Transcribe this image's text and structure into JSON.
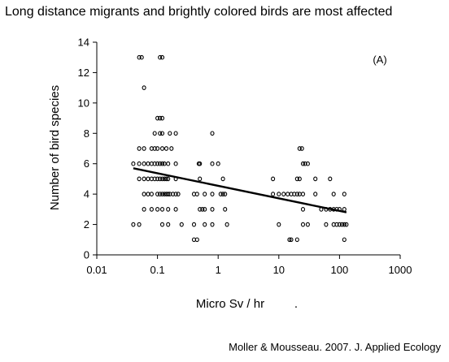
{
  "slide": {
    "title": "Long distance migrants and brightly colored birds are most affected",
    "citation": "Moller & Mousseau. 2007. J. Applied Ecology"
  },
  "chart_data": {
    "type": "scatter",
    "title": "",
    "panel_label": "(A)",
    "xlabel": "Micro Sv / hr",
    "xlabel_suffix": ".",
    "ylabel": "Number of bird species",
    "x_scale": "log",
    "xlim": [
      0.01,
      1000
    ],
    "ylim": [
      0,
      14
    ],
    "x_ticks": [
      0.01,
      0.1,
      1,
      10,
      100,
      1000
    ],
    "x_tick_labels": [
      "0.01",
      "0.1",
      "1",
      "10",
      "100",
      "1000"
    ],
    "y_ticks": [
      0,
      2,
      4,
      6,
      8,
      10,
      12,
      14
    ],
    "y_tick_labels": [
      "0",
      "2",
      "4",
      "6",
      "8",
      "10",
      "12",
      "14"
    ],
    "grid": false,
    "legend": "none",
    "colors": {
      "points": "#000000",
      "trend": "#000000"
    },
    "series": [
      {
        "values": [
          [
            0.05,
            13
          ],
          [
            0.055,
            13
          ],
          [
            0.11,
            13
          ],
          [
            0.12,
            13
          ],
          [
            0.06,
            11
          ],
          [
            0.1,
            9
          ],
          [
            0.11,
            9
          ],
          [
            0.12,
            9
          ],
          [
            0.09,
            8
          ],
          [
            0.11,
            8
          ],
          [
            0.12,
            8
          ],
          [
            0.16,
            8
          ],
          [
            0.2,
            8
          ],
          [
            0.8,
            8
          ],
          [
            0.05,
            7
          ],
          [
            0.06,
            7
          ],
          [
            0.08,
            7
          ],
          [
            0.09,
            7
          ],
          [
            0.1,
            7
          ],
          [
            0.12,
            7
          ],
          [
            0.14,
            7
          ],
          [
            0.17,
            7
          ],
          [
            22,
            7
          ],
          [
            24,
            7
          ],
          [
            0.04,
            6
          ],
          [
            0.05,
            6
          ],
          [
            0.06,
            6
          ],
          [
            0.07,
            6
          ],
          [
            0.08,
            6
          ],
          [
            0.09,
            6
          ],
          [
            0.1,
            6
          ],
          [
            0.11,
            6
          ],
          [
            0.12,
            6
          ],
          [
            0.13,
            6
          ],
          [
            0.15,
            6
          ],
          [
            0.2,
            6
          ],
          [
            0.48,
            6
          ],
          [
            0.5,
            6
          ],
          [
            0.8,
            6
          ],
          [
            1.0,
            6
          ],
          [
            25,
            6
          ],
          [
            27,
            6
          ],
          [
            30,
            6
          ],
          [
            0.05,
            5
          ],
          [
            0.06,
            5
          ],
          [
            0.07,
            5
          ],
          [
            0.08,
            5
          ],
          [
            0.09,
            5
          ],
          [
            0.1,
            5
          ],
          [
            0.11,
            5
          ],
          [
            0.12,
            5
          ],
          [
            0.13,
            5
          ],
          [
            0.14,
            5
          ],
          [
            0.15,
            5
          ],
          [
            0.2,
            5
          ],
          [
            0.5,
            5
          ],
          [
            1.2,
            5
          ],
          [
            8,
            5
          ],
          [
            20,
            5
          ],
          [
            22,
            5
          ],
          [
            40,
            5
          ],
          [
            70,
            5
          ],
          [
            0.06,
            4
          ],
          [
            0.07,
            4
          ],
          [
            0.08,
            4
          ],
          [
            0.1,
            4
          ],
          [
            0.11,
            4
          ],
          [
            0.12,
            4
          ],
          [
            0.13,
            4
          ],
          [
            0.14,
            4
          ],
          [
            0.15,
            4
          ],
          [
            0.16,
            4
          ],
          [
            0.18,
            4
          ],
          [
            0.2,
            4
          ],
          [
            0.22,
            4
          ],
          [
            0.4,
            4
          ],
          [
            0.45,
            4
          ],
          [
            0.6,
            4
          ],
          [
            0.8,
            4
          ],
          [
            1.1,
            4
          ],
          [
            1.2,
            4
          ],
          [
            1.3,
            4
          ],
          [
            8,
            4
          ],
          [
            10,
            4
          ],
          [
            12,
            4
          ],
          [
            14,
            4
          ],
          [
            16,
            4
          ],
          [
            18,
            4
          ],
          [
            20,
            4
          ],
          [
            22,
            4
          ],
          [
            25,
            4
          ],
          [
            40,
            4
          ],
          [
            80,
            4
          ],
          [
            120,
            4
          ],
          [
            0.06,
            3
          ],
          [
            0.08,
            3
          ],
          [
            0.1,
            3
          ],
          [
            0.12,
            3
          ],
          [
            0.15,
            3
          ],
          [
            0.2,
            3
          ],
          [
            0.5,
            3
          ],
          [
            0.55,
            3
          ],
          [
            0.6,
            3
          ],
          [
            0.8,
            3
          ],
          [
            1.3,
            3
          ],
          [
            25,
            3
          ],
          [
            50,
            3
          ],
          [
            60,
            3
          ],
          [
            70,
            3
          ],
          [
            80,
            3
          ],
          [
            90,
            3
          ],
          [
            100,
            3
          ],
          [
            120,
            3
          ],
          [
            0.04,
            2
          ],
          [
            0.05,
            2
          ],
          [
            0.12,
            2
          ],
          [
            0.15,
            2
          ],
          [
            0.25,
            2
          ],
          [
            0.4,
            2
          ],
          [
            0.6,
            2
          ],
          [
            0.8,
            2
          ],
          [
            1.4,
            2
          ],
          [
            10,
            2
          ],
          [
            25,
            2
          ],
          [
            30,
            2
          ],
          [
            60,
            2
          ],
          [
            80,
            2
          ],
          [
            90,
            2
          ],
          [
            100,
            2
          ],
          [
            110,
            2
          ],
          [
            120,
            2
          ],
          [
            130,
            2
          ],
          [
            0.4,
            1
          ],
          [
            0.45,
            1
          ],
          [
            15,
            1
          ],
          [
            16,
            1
          ],
          [
            20,
            1
          ],
          [
            120,
            1
          ]
        ]
      }
    ],
    "trendline": {
      "x": [
        0.04,
        130
      ],
      "y": [
        5.7,
        2.8
      ]
    }
  }
}
